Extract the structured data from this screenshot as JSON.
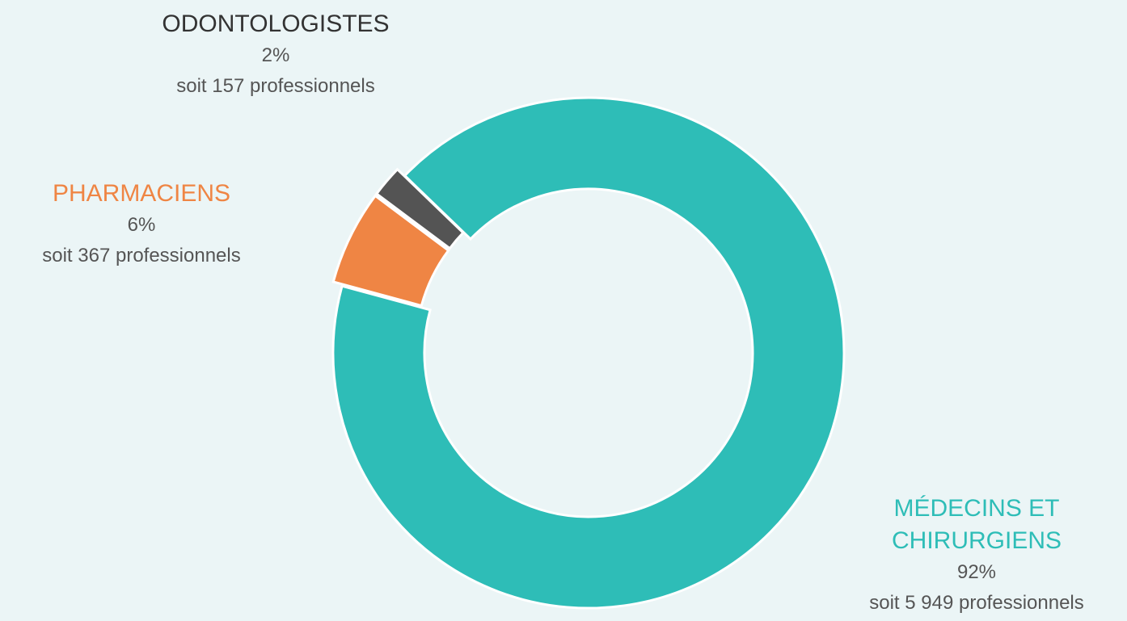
{
  "chart_data": {
    "type": "donut",
    "categories": [
      "MÉDECINS ET CHIRURGIENS",
      "PHARMACIENS",
      "ODONTOLOGISTES"
    ],
    "values": [
      92,
      6,
      2
    ],
    "value_labels": [
      "92%",
      "6%",
      "2%"
    ],
    "count_labels": [
      "soit 5 949 professionnels",
      "soit 367 professionnels",
      "soit 157 professionnels"
    ],
    "colors": [
      "#2ebdb7",
      "#ef8544",
      "#545454"
    ]
  }
}
